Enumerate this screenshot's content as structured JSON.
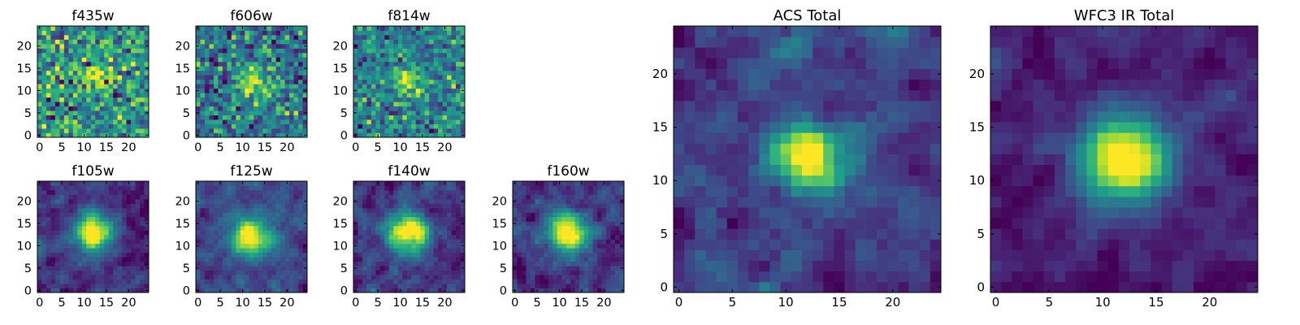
{
  "chart_data": [
    {
      "type": "heatmap",
      "title": "f435w",
      "xlim": [
        0,
        24
      ],
      "ylim": [
        0,
        24
      ],
      "xticks": [
        0,
        5,
        10,
        15,
        20
      ],
      "yticks": [
        0,
        5,
        10,
        15,
        20
      ],
      "colormap": "viridis",
      "grid": false,
      "noise": 0.9,
      "peak": 0.55,
      "peak_center": [
        12,
        12
      ],
      "peak_sigma": 2.5
    },
    {
      "type": "heatmap",
      "title": "f606w",
      "xlim": [
        0,
        24
      ],
      "ylim": [
        0,
        24
      ],
      "xticks": [
        0,
        5,
        10,
        15,
        20
      ],
      "yticks": [
        0,
        5,
        10,
        15,
        20
      ],
      "colormap": "viridis",
      "grid": false,
      "noise": 0.85,
      "peak": 0.8,
      "peak_center": [
        12,
        12
      ],
      "peak_sigma": 2.5
    },
    {
      "type": "heatmap",
      "title": "f814w",
      "xlim": [
        0,
        24
      ],
      "ylim": [
        0,
        24
      ],
      "xticks": [
        0,
        5,
        10,
        15,
        20
      ],
      "yticks": [
        0,
        5,
        10,
        15,
        20
      ],
      "colormap": "viridis",
      "grid": false,
      "noise": 0.85,
      "peak": 0.8,
      "peak_center": [
        12,
        12
      ],
      "peak_sigma": 2.5
    },
    {
      "type": "heatmap",
      "title": "f105w",
      "xlim": [
        0,
        24
      ],
      "ylim": [
        0,
        24
      ],
      "xticks": [
        0,
        5,
        10,
        15,
        20
      ],
      "yticks": [
        0,
        5,
        10,
        15,
        20
      ],
      "colormap": "viridis",
      "grid": false,
      "noise": 0.55,
      "peak": 1.1,
      "peak_center": [
        12,
        13
      ],
      "peak_sigma": 3
    },
    {
      "type": "heatmap",
      "title": "f125w",
      "xlim": [
        0,
        24
      ],
      "ylim": [
        0,
        24
      ],
      "xticks": [
        0,
        5,
        10,
        15,
        20
      ],
      "yticks": [
        0,
        5,
        10,
        15,
        20
      ],
      "colormap": "viridis",
      "grid": false,
      "noise": 0.55,
      "peak": 1.1,
      "peak_center": [
        12,
        12
      ],
      "peak_sigma": 3
    },
    {
      "type": "heatmap",
      "title": "f140w",
      "xlim": [
        0,
        24
      ],
      "ylim": [
        0,
        24
      ],
      "xticks": [
        0,
        5,
        10,
        15,
        20
      ],
      "yticks": [
        0,
        5,
        10,
        15,
        20
      ],
      "colormap": "viridis",
      "grid": false,
      "noise": 0.55,
      "peak": 1.1,
      "peak_center": [
        12,
        13
      ],
      "peak_sigma": 3
    },
    {
      "type": "heatmap",
      "title": "f160w",
      "xlim": [
        0,
        24
      ],
      "ylim": [
        0,
        24
      ],
      "xticks": [
        0,
        5,
        10,
        15,
        20
      ],
      "yticks": [
        0,
        5,
        10,
        15,
        20
      ],
      "colormap": "viridis",
      "grid": false,
      "noise": 0.55,
      "peak": 1.1,
      "peak_center": [
        12,
        13
      ],
      "peak_sigma": 3
    },
    {
      "type": "heatmap",
      "title": "ACS Total",
      "xlim": [
        0,
        24
      ],
      "ylim": [
        0,
        24
      ],
      "xticks": [
        0,
        5,
        10,
        15,
        20
      ],
      "yticks": [
        0,
        5,
        10,
        15,
        20
      ],
      "colormap": "viridis",
      "grid": false,
      "noise": 0.6,
      "peak": 1.0,
      "peak_center": [
        12,
        12
      ],
      "peak_sigma": 2.2
    },
    {
      "type": "heatmap",
      "title": "WFC3 IR Total",
      "xlim": [
        0,
        24
      ],
      "ylim": [
        0,
        24
      ],
      "xticks": [
        0,
        5,
        10,
        15,
        20
      ],
      "yticks": [
        0,
        5,
        10,
        15,
        20
      ],
      "colormap": "viridis",
      "grid": false,
      "noise": 0.35,
      "peak": 1.2,
      "peak_center": [
        12,
        12
      ],
      "peak_sigma": 2.8
    }
  ]
}
